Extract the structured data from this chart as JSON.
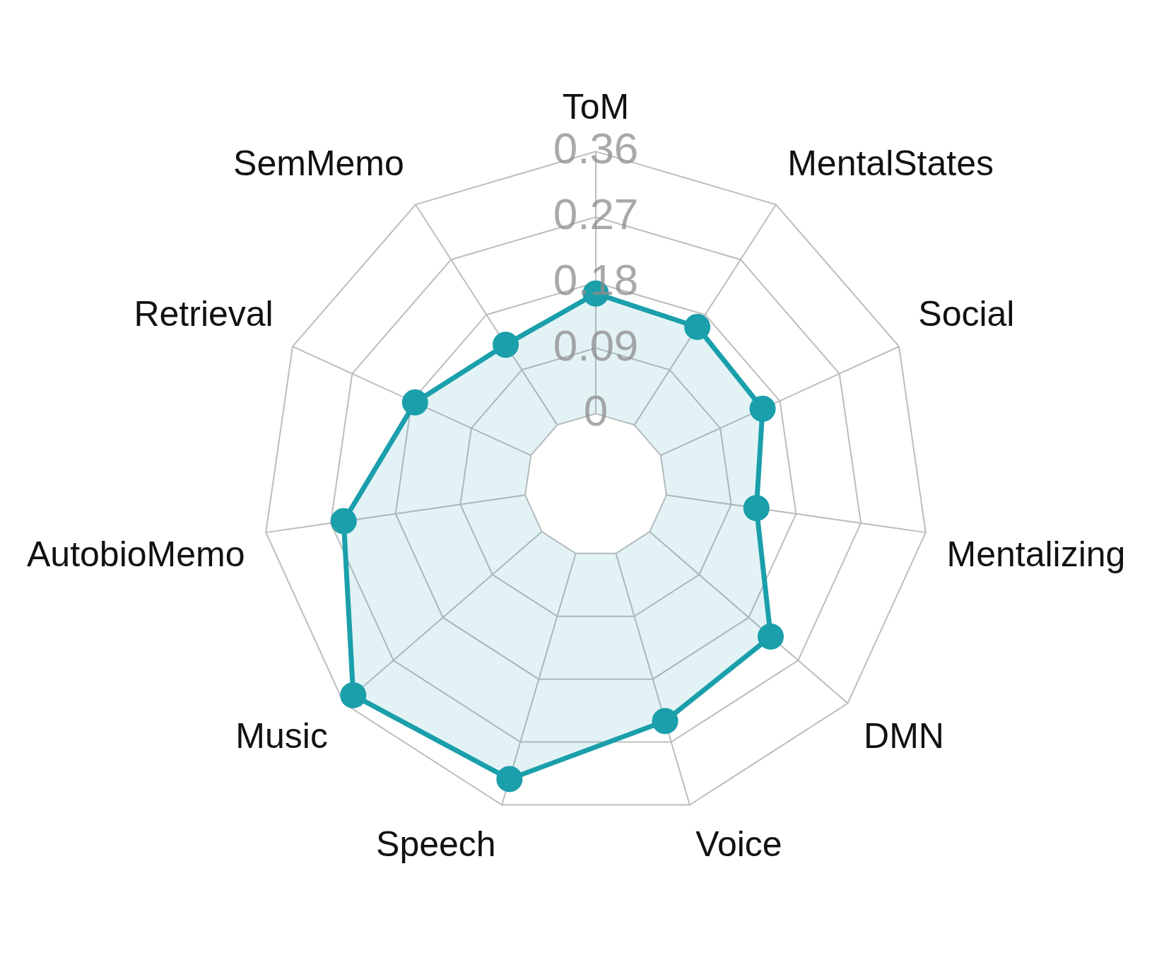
{
  "chart_data": {
    "type": "radar",
    "categories": [
      "ToM",
      "MentalStates",
      "Social",
      "Mentalizing",
      "DMN",
      "Voice",
      "Speech",
      "Music",
      "AutobioMemo",
      "Retrieval",
      "SemMemo"
    ],
    "series": [
      {
        "color": "#1a9fab",
        "values": [
          0.165,
          0.16,
          0.154,
          0.125,
          0.22,
          0.24,
          0.323,
          0.343,
          0.252,
          0.175,
          0.131
        ]
      }
    ],
    "ylim": [
      -0.098,
      0.36
    ],
    "yticks": [
      0,
      0.09,
      0.18,
      0.27,
      0.36
    ],
    "grid": true,
    "legend": false,
    "marker": "circle",
    "line_style": "solid"
  }
}
